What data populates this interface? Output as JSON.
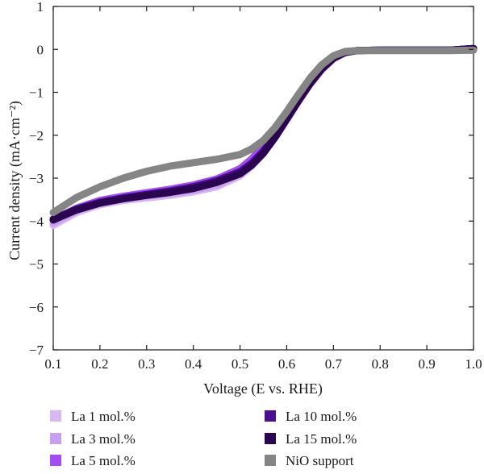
{
  "chart_data": {
    "type": "line",
    "xlabel": "Voltage (E vs. RHE)",
    "ylabel": "Current density (mA·cm⁻²)",
    "xlim": [
      0.1,
      1.0
    ],
    "ylim": [
      -7,
      1
    ],
    "xticks": [
      "0.1",
      "0.2",
      "0.3",
      "0.4",
      "0.5",
      "0.6",
      "0.7",
      "0.8",
      "0.9",
      "1.0"
    ],
    "yticks": [
      "1",
      "0",
      "−1",
      "−2",
      "−3",
      "−4",
      "−5",
      "−6",
      "−7"
    ],
    "grid": false,
    "legend_position": "bottom",
    "series": [
      {
        "name": "La 1 mol.%",
        "color": "#d9b8f2",
        "x": [
          0.1,
          0.15,
          0.2,
          0.25,
          0.3,
          0.35,
          0.4,
          0.45,
          0.5,
          0.525,
          0.55,
          0.575,
          0.6,
          0.625,
          0.65,
          0.675,
          0.7,
          0.725,
          0.75,
          0.8,
          0.85,
          0.9,
          0.95,
          1.0
        ],
        "y": [
          -4.1,
          -3.8,
          -3.62,
          -3.52,
          -3.46,
          -3.4,
          -3.32,
          -3.2,
          -2.95,
          -2.72,
          -2.42,
          -2.05,
          -1.65,
          -1.22,
          -0.82,
          -0.48,
          -0.22,
          -0.08,
          -0.03,
          -0.02,
          -0.02,
          -0.02,
          -0.02,
          0.0
        ]
      },
      {
        "name": "La 3 mol.%",
        "color": "#c9a0f0",
        "x": [
          0.1,
          0.15,
          0.2,
          0.25,
          0.3,
          0.35,
          0.4,
          0.45,
          0.5,
          0.525,
          0.55,
          0.575,
          0.6,
          0.625,
          0.65,
          0.675,
          0.7,
          0.725,
          0.75,
          0.8,
          0.85,
          0.9,
          0.95,
          1.0
        ],
        "y": [
          -4.05,
          -3.76,
          -3.58,
          -3.48,
          -3.42,
          -3.36,
          -3.28,
          -3.16,
          -2.9,
          -2.66,
          -2.36,
          -1.99,
          -1.58,
          -1.16,
          -0.77,
          -0.44,
          -0.2,
          -0.07,
          -0.03,
          -0.02,
          -0.02,
          -0.02,
          -0.02,
          0.02
        ]
      },
      {
        "name": "La 5 mol.%",
        "color": "#a24ef0",
        "x": [
          0.1,
          0.15,
          0.2,
          0.25,
          0.3,
          0.35,
          0.4,
          0.45,
          0.5,
          0.525,
          0.55,
          0.575,
          0.6,
          0.625,
          0.65,
          0.675,
          0.7,
          0.725,
          0.75,
          0.8,
          0.85,
          0.9,
          0.95,
          1.0
        ],
        "y": [
          -3.98,
          -3.7,
          -3.52,
          -3.42,
          -3.34,
          -3.26,
          -3.16,
          -3.02,
          -2.78,
          -2.55,
          -2.25,
          -1.88,
          -1.48,
          -1.07,
          -0.7,
          -0.4,
          -0.18,
          -0.06,
          -0.03,
          -0.02,
          -0.02,
          -0.02,
          -0.02,
          0.02
        ]
      },
      {
        "name": "La 10 mol.%",
        "color": "#4a0e8f",
        "x": [
          0.1,
          0.15,
          0.2,
          0.25,
          0.3,
          0.35,
          0.4,
          0.45,
          0.5,
          0.525,
          0.55,
          0.575,
          0.6,
          0.625,
          0.65,
          0.675,
          0.7,
          0.725,
          0.75,
          0.8,
          0.85,
          0.9,
          0.95,
          1.0
        ],
        "y": [
          -3.95,
          -3.72,
          -3.56,
          -3.46,
          -3.38,
          -3.3,
          -3.2,
          -3.06,
          -2.85,
          -2.65,
          -2.37,
          -2.0,
          -1.58,
          -1.15,
          -0.76,
          -0.44,
          -0.2,
          -0.07,
          -0.03,
          -0.02,
          -0.02,
          -0.02,
          -0.02,
          0.02
        ]
      },
      {
        "name": "La 15 mol.%",
        "color": "#2a0650",
        "x": [
          0.1,
          0.15,
          0.2,
          0.25,
          0.3,
          0.35,
          0.4,
          0.45,
          0.5,
          0.525,
          0.55,
          0.575,
          0.6,
          0.625,
          0.65,
          0.675,
          0.7,
          0.725,
          0.75,
          0.8,
          0.85,
          0.9,
          0.95,
          1.0
        ],
        "y": [
          -3.97,
          -3.74,
          -3.58,
          -3.48,
          -3.4,
          -3.33,
          -3.24,
          -3.1,
          -2.9,
          -2.7,
          -2.42,
          -2.05,
          -1.63,
          -1.2,
          -0.8,
          -0.46,
          -0.21,
          -0.07,
          -0.03,
          -0.02,
          -0.02,
          -0.02,
          -0.02,
          0.02
        ]
      },
      {
        "name": "NiO support",
        "color": "#858585",
        "x": [
          0.1,
          0.15,
          0.2,
          0.25,
          0.3,
          0.35,
          0.4,
          0.45,
          0.5,
          0.525,
          0.55,
          0.575,
          0.6,
          0.625,
          0.65,
          0.675,
          0.7,
          0.725,
          0.75,
          0.8,
          0.85,
          0.9,
          0.95,
          1.0
        ],
        "y": [
          -3.8,
          -3.45,
          -3.2,
          -3.0,
          -2.84,
          -2.72,
          -2.64,
          -2.56,
          -2.45,
          -2.32,
          -2.12,
          -1.82,
          -1.45,
          -1.05,
          -0.67,
          -0.36,
          -0.15,
          -0.05,
          -0.03,
          -0.03,
          -0.03,
          -0.03,
          -0.03,
          -0.02
        ]
      }
    ]
  }
}
